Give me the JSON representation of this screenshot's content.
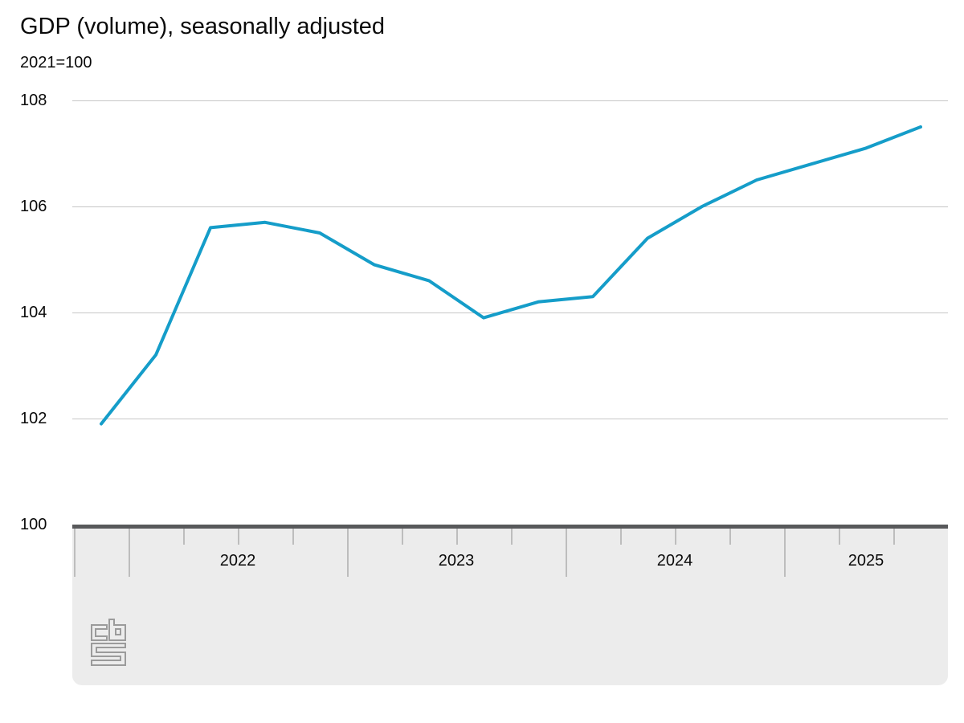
{
  "header": {
    "title": "GDP (volume), seasonally adjusted",
    "subtitle": "2021=100"
  },
  "chart_data": {
    "type": "line",
    "title": "GDP (volume), seasonally adjusted",
    "subtitle": "2021=100",
    "x": [
      "2021-Q4",
      "2022-Q1",
      "2022-Q2",
      "2022-Q3",
      "2022-Q4",
      "2023-Q1",
      "2023-Q2",
      "2023-Q3",
      "2023-Q4",
      "2024-Q1",
      "2024-Q2",
      "2024-Q3",
      "2024-Q4",
      "2025-Q1",
      "2025-Q2",
      "2025-Q3"
    ],
    "values": [
      101.9,
      103.2,
      105.6,
      105.7,
      105.5,
      104.9,
      104.6,
      103.9,
      104.2,
      104.3,
      105.4,
      106.0,
      106.5,
      106.8,
      107.1,
      107.5
    ],
    "y_ticks": [
      100,
      102,
      104,
      106,
      108
    ],
    "x_tick_years": [
      "2022",
      "2023",
      "2024",
      "2025"
    ],
    "xlabel": "",
    "ylabel": "2021=100",
    "ylim": [
      100,
      108.2
    ],
    "grid": "horizontal",
    "legend": "none",
    "line_color": "#159dc9",
    "baseline_value": 100
  },
  "footer": {
    "logo": "cbs-logo"
  },
  "colors": {
    "line": "#159dc9",
    "gridline": "#c7c7c7",
    "axis_bar": "#58595b",
    "panel_background": "#ececec",
    "tick": "#bdbdbd",
    "text": "#000000",
    "logo": "#9b9b9b"
  }
}
